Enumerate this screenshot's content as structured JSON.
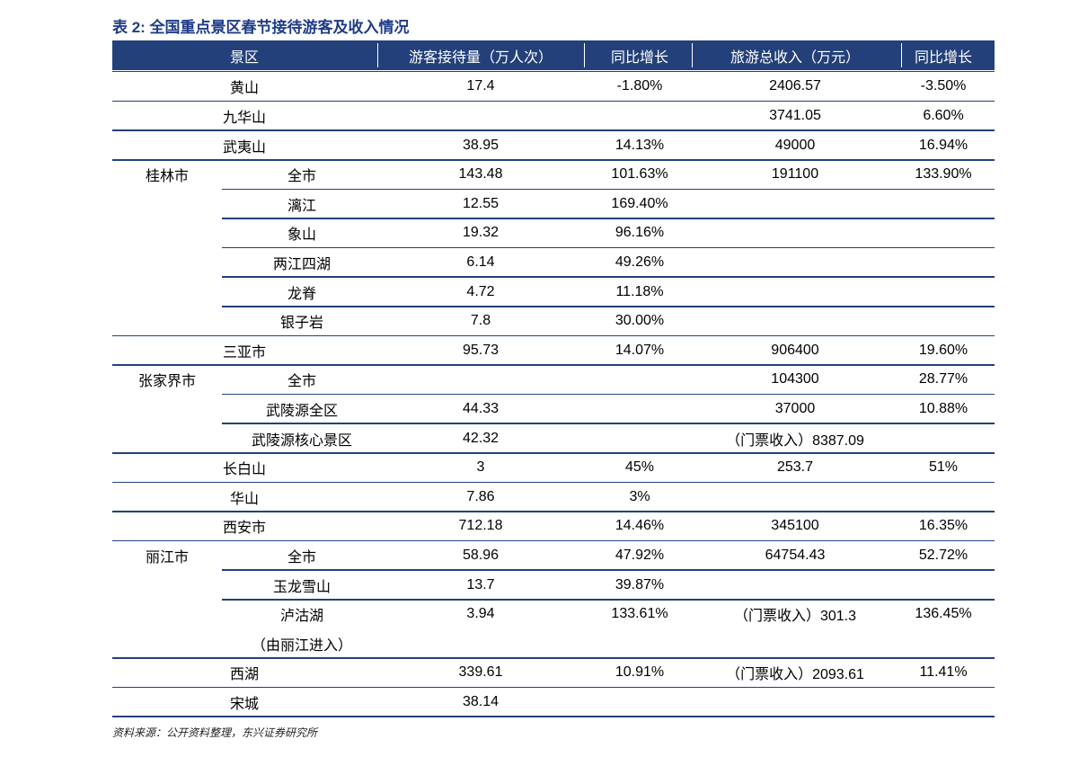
{
  "title": "表 2: 全国重点景区春节接待游客及收入情况",
  "table": {
    "header": [
      "景区",
      "游客接待量（万人次）",
      "同比增长",
      "旅游总收入（万元）",
      "同比增长"
    ],
    "sections": [
      {
        "rows": [
          {
            "name": "黄山",
            "visitors": "17.4",
            "visitors_growth": "-1.80%",
            "revenue": "2406.57",
            "revenue_growth": "-3.50%"
          }
        ]
      },
      {
        "rows": [
          {
            "name": "九华山",
            "revenue": "3741.05",
            "revenue_growth": "6.60%"
          }
        ]
      },
      {
        "rows": [
          {
            "name": "武夷山",
            "visitors": "38.95",
            "visitors_growth": "14.13%",
            "revenue": "49000",
            "revenue_growth": "16.94%"
          }
        ]
      },
      {
        "label": "桂林市",
        "rows": [
          {
            "name": "全市",
            "visitors": "143.48",
            "visitors_growth": "101.63%",
            "revenue": "191100",
            "revenue_growth": "133.90%"
          },
          {
            "name": "漓江",
            "visitors": "12.55",
            "visitors_growth": "169.40%"
          },
          {
            "name": "象山",
            "visitors": "19.32",
            "visitors_growth": "96.16%"
          },
          {
            "name": "两江四湖",
            "visitors": "6.14",
            "visitors_growth": "49.26%"
          },
          {
            "name": "龙脊",
            "visitors": "4.72",
            "visitors_growth": "11.18%"
          },
          {
            "name": "银子岩",
            "visitors": "7.8",
            "visitors_growth": "30.00%"
          }
        ]
      },
      {
        "rows": [
          {
            "name": "三亚市",
            "visitors": "95.73",
            "visitors_growth": "14.07%",
            "revenue": "906400",
            "revenue_growth": "19.60%"
          }
        ]
      },
      {
        "label": "张家界市",
        "rows": [
          {
            "name": "全市",
            "revenue": "104300",
            "revenue_growth": "28.77%"
          },
          {
            "name": "武陵源全区",
            "visitors": "44.33",
            "revenue": "37000",
            "revenue_growth": "10.88%"
          },
          {
            "name": "武陵源核心景区",
            "visitors": "42.32",
            "revenue": "（门票收入）8387.09"
          }
        ]
      },
      {
        "rows": [
          {
            "name": "长白山",
            "visitors": "3",
            "visitors_growth": "45%",
            "revenue": "253.7",
            "revenue_growth": "51%"
          }
        ]
      },
      {
        "rows": [
          {
            "name": "华山",
            "visitors": "7.86",
            "visitors_growth": "3%"
          }
        ]
      },
      {
        "rows": [
          {
            "name": "西安市",
            "visitors": "712.18",
            "visitors_growth": "14.46%",
            "revenue": "345100",
            "revenue_growth": "16.35%"
          }
        ]
      },
      {
        "label": "丽江市",
        "rows": [
          {
            "name": "全市",
            "visitors": "58.96",
            "visitors_growth": "47.92%",
            "revenue": "64754.43",
            "revenue_growth": "52.72%"
          },
          {
            "name": "玉龙雪山",
            "visitors": "13.7",
            "visitors_growth": "39.87%"
          },
          {
            "name": "泸沽湖",
            "name_note": "（由丽江进入）",
            "visitors": "3.94",
            "visitors_growth": "133.61%",
            "revenue": "（门票收入）301.3",
            "revenue_growth": "136.45%"
          }
        ]
      },
      {
        "rows": [
          {
            "name": "西湖",
            "visitors": "339.61",
            "visitors_growth": "10.91%",
            "revenue": "（门票收入）2093.61",
            "revenue_growth": "11.41%"
          }
        ]
      },
      {
        "rows": [
          {
            "name": "宋城",
            "visitors": "38.14"
          }
        ]
      }
    ]
  },
  "source": "资料来源：公开资料整理，东兴证券研究所"
}
